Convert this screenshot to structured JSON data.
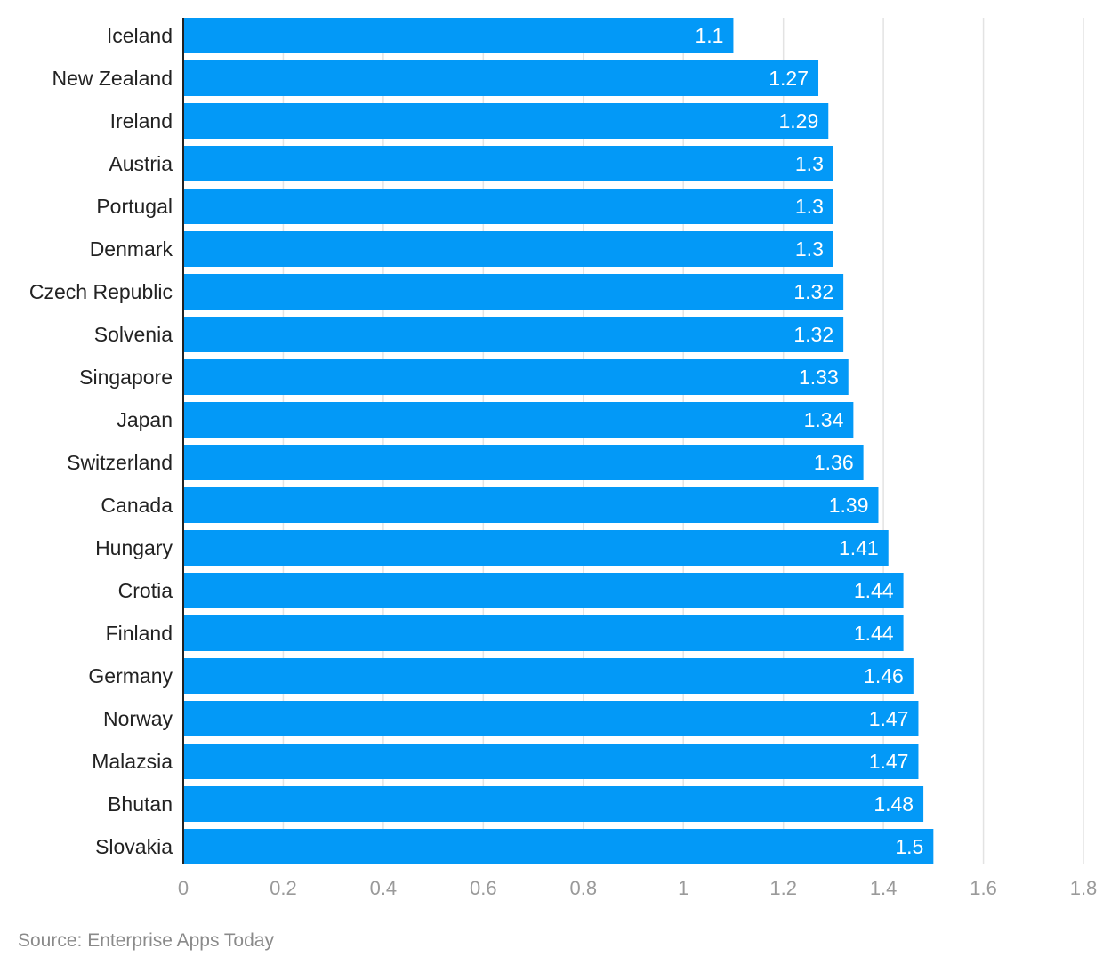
{
  "chart_data": {
    "type": "bar",
    "orientation": "horizontal",
    "categories": [
      "Iceland",
      "New Zealand",
      "Ireland",
      "Austria",
      "Portugal",
      "Denmark",
      "Czech Republic",
      "Solvenia",
      "Singapore",
      "Japan",
      "Switzerland",
      "Canada",
      "Hungary",
      "Crotia",
      "Finland",
      "Germany",
      "Norway",
      "Malazsia",
      "Bhutan",
      "Slovakia"
    ],
    "values": [
      1.1,
      1.27,
      1.29,
      1.3,
      1.3,
      1.3,
      1.32,
      1.32,
      1.33,
      1.34,
      1.36,
      1.39,
      1.41,
      1.44,
      1.44,
      1.46,
      1.47,
      1.47,
      1.48,
      1.5
    ],
    "value_labels": [
      "1.1",
      "1.27",
      "1.29",
      "1.3",
      "1.3",
      "1.3",
      "1.32",
      "1.32",
      "1.33",
      "1.34",
      "1.36",
      "1.39",
      "1.41",
      "1.44",
      "1.44",
      "1.46",
      "1.47",
      "1.47",
      "1.48",
      "1.5"
    ],
    "x_ticks": [
      "0",
      "0.2",
      "0.4",
      "0.6",
      "0.8",
      "1",
      "1.2",
      "1.4",
      "1.6",
      "1.8"
    ],
    "xlim": [
      0,
      1.8
    ],
    "grid": true,
    "bar_color": "#0399f7",
    "title": "",
    "xlabel": "",
    "ylabel": ""
  },
  "source": "Source: Enterprise Apps Today"
}
